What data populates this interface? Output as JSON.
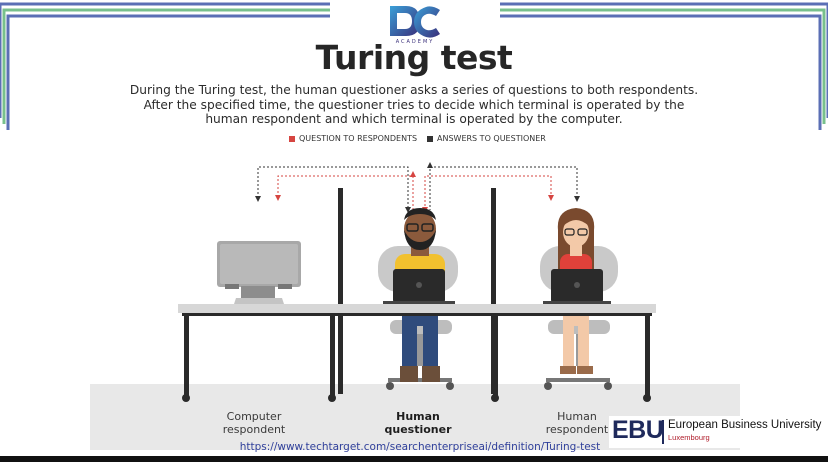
{
  "header": {
    "logo_text": "DC",
    "logo_subtext": "ACADEMY",
    "title": "Turing test",
    "description_lines": [
      "During the Turing test, the human questioner asks a series of questions to both respondents.",
      "After the specified time, the questioner tries to decide which terminal is operated by the",
      "human respondent and which terminal is operated by the computer."
    ]
  },
  "legend": {
    "items": [
      {
        "label": "QUESTION TO RESPONDENTS",
        "color": "#d64541"
      },
      {
        "label": "ANSWERS TO QUESTIONER",
        "color": "#333333"
      }
    ]
  },
  "figures": {
    "computer": {
      "label_lines": [
        "Computer",
        "respondent"
      ]
    },
    "questioner": {
      "label_lines": [
        "Human",
        "questioner"
      ]
    },
    "human": {
      "label_lines": [
        "Human",
        "respondent"
      ]
    }
  },
  "source_url": "https://www.techtarget.com/searchenterpriseai/definition/Turing-test",
  "branding": {
    "abbr": "EBU",
    "name": "European Business University",
    "city": "Luxembourg"
  },
  "colors": {
    "frame_blue": "#5b6fb5",
    "frame_green": "#78c08c",
    "question_red": "#d64541",
    "answer_dark": "#333333",
    "shirt_yellow": "#f2c12e",
    "shirt_red": "#e0413a",
    "jeans_blue": "#2f4b7c",
    "floor_gray": "#e6e6e6"
  }
}
